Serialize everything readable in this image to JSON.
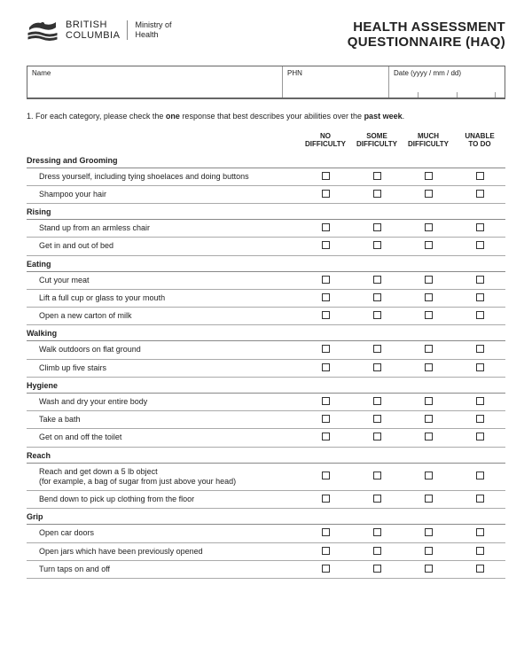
{
  "header": {
    "org_line1": "BRITISH",
    "org_line2": "COLUMBIA",
    "ministry_line1": "Ministry of",
    "ministry_line2": "Health",
    "title_line1": "HEALTH ASSESSMENT",
    "title_line2": "QUESTIONNAIRE (HAQ)"
  },
  "info": {
    "name_label": "Name",
    "phn_label": "PHN",
    "date_label": "Date (yyyy / mm / dd)"
  },
  "intro": {
    "prefix": "1. For each category, please check the ",
    "bold1": "one",
    "mid": " response that best describes your abilities over the ",
    "bold2": "past week",
    "suffix": "."
  },
  "columns": {
    "c1a": "NO",
    "c1b": "DIFFICULTY",
    "c2a": "SOME",
    "c2b": "DIFFICULTY",
    "c3a": "MUCH",
    "c3b": "DIFFICULTY",
    "c4a": "UNABLE",
    "c4b": "TO DO"
  },
  "categories": [
    {
      "name": "Dressing and Grooming",
      "items": [
        "Dress yourself, including tying shoelaces and doing buttons",
        "Shampoo your hair"
      ]
    },
    {
      "name": "Rising",
      "items": [
        "Stand up from an armless chair",
        "Get in and out of bed"
      ]
    },
    {
      "name": "Eating",
      "items": [
        "Cut your meat",
        "Lift a full cup or glass to your mouth",
        "Open a new carton of milk"
      ]
    },
    {
      "name": "Walking",
      "items": [
        "Walk outdoors on flat ground",
        "Climb up five stairs"
      ]
    },
    {
      "name": "Hygiene",
      "items": [
        "Wash and dry your entire body",
        "Take a bath",
        "Get on and off the toilet"
      ]
    },
    {
      "name": "Reach",
      "items": [
        "Reach and get down a 5 lb object\n(for example, a bag of sugar from just above your head)",
        "Bend down to pick up clothing from the floor"
      ]
    },
    {
      "name": "Grip",
      "items": [
        "Open car doors",
        "Open jars which have been previously opened",
        "Turn taps on and off"
      ]
    }
  ],
  "colors": {
    "page_bg": "#ffffff",
    "body_bg": "#e8e8e8",
    "border_heavy": "#666666",
    "border_light": "#aaaaaa",
    "text": "#222222"
  }
}
